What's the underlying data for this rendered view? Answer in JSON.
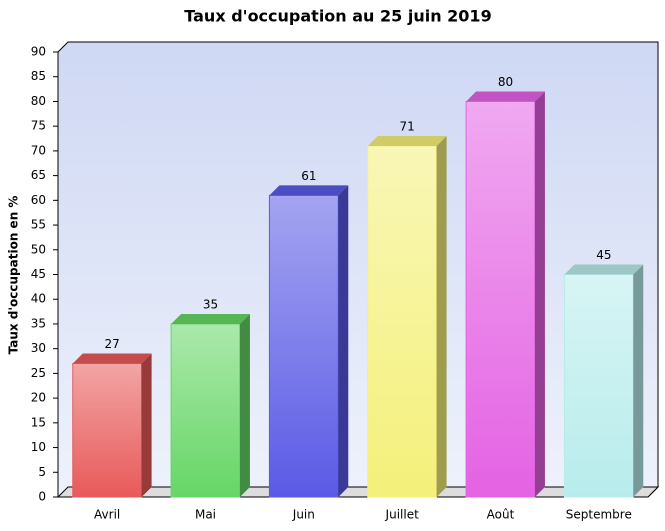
{
  "chart_data": {
    "type": "bar3d",
    "title": "Taux d'occupation au 25 juin 2019",
    "y_label": "Taux d'occupation en %",
    "categories": [
      "Avril",
      "Mai",
      "Juin",
      "Juillet",
      "Août",
      "Septembre"
    ],
    "values": [
      27,
      35,
      61,
      71,
      80,
      45
    ],
    "colors": [
      "#e85a5a",
      "#66d666",
      "#5a5ae6",
      "#f4f07a",
      "#e462e4",
      "#b8ecec"
    ],
    "ylim": [
      0,
      90
    ],
    "yticks": [
      0,
      5,
      10,
      15,
      20,
      25,
      30,
      35,
      40,
      45,
      50,
      55,
      60,
      65,
      70,
      75,
      80,
      85,
      90
    ],
    "grid": false
  }
}
